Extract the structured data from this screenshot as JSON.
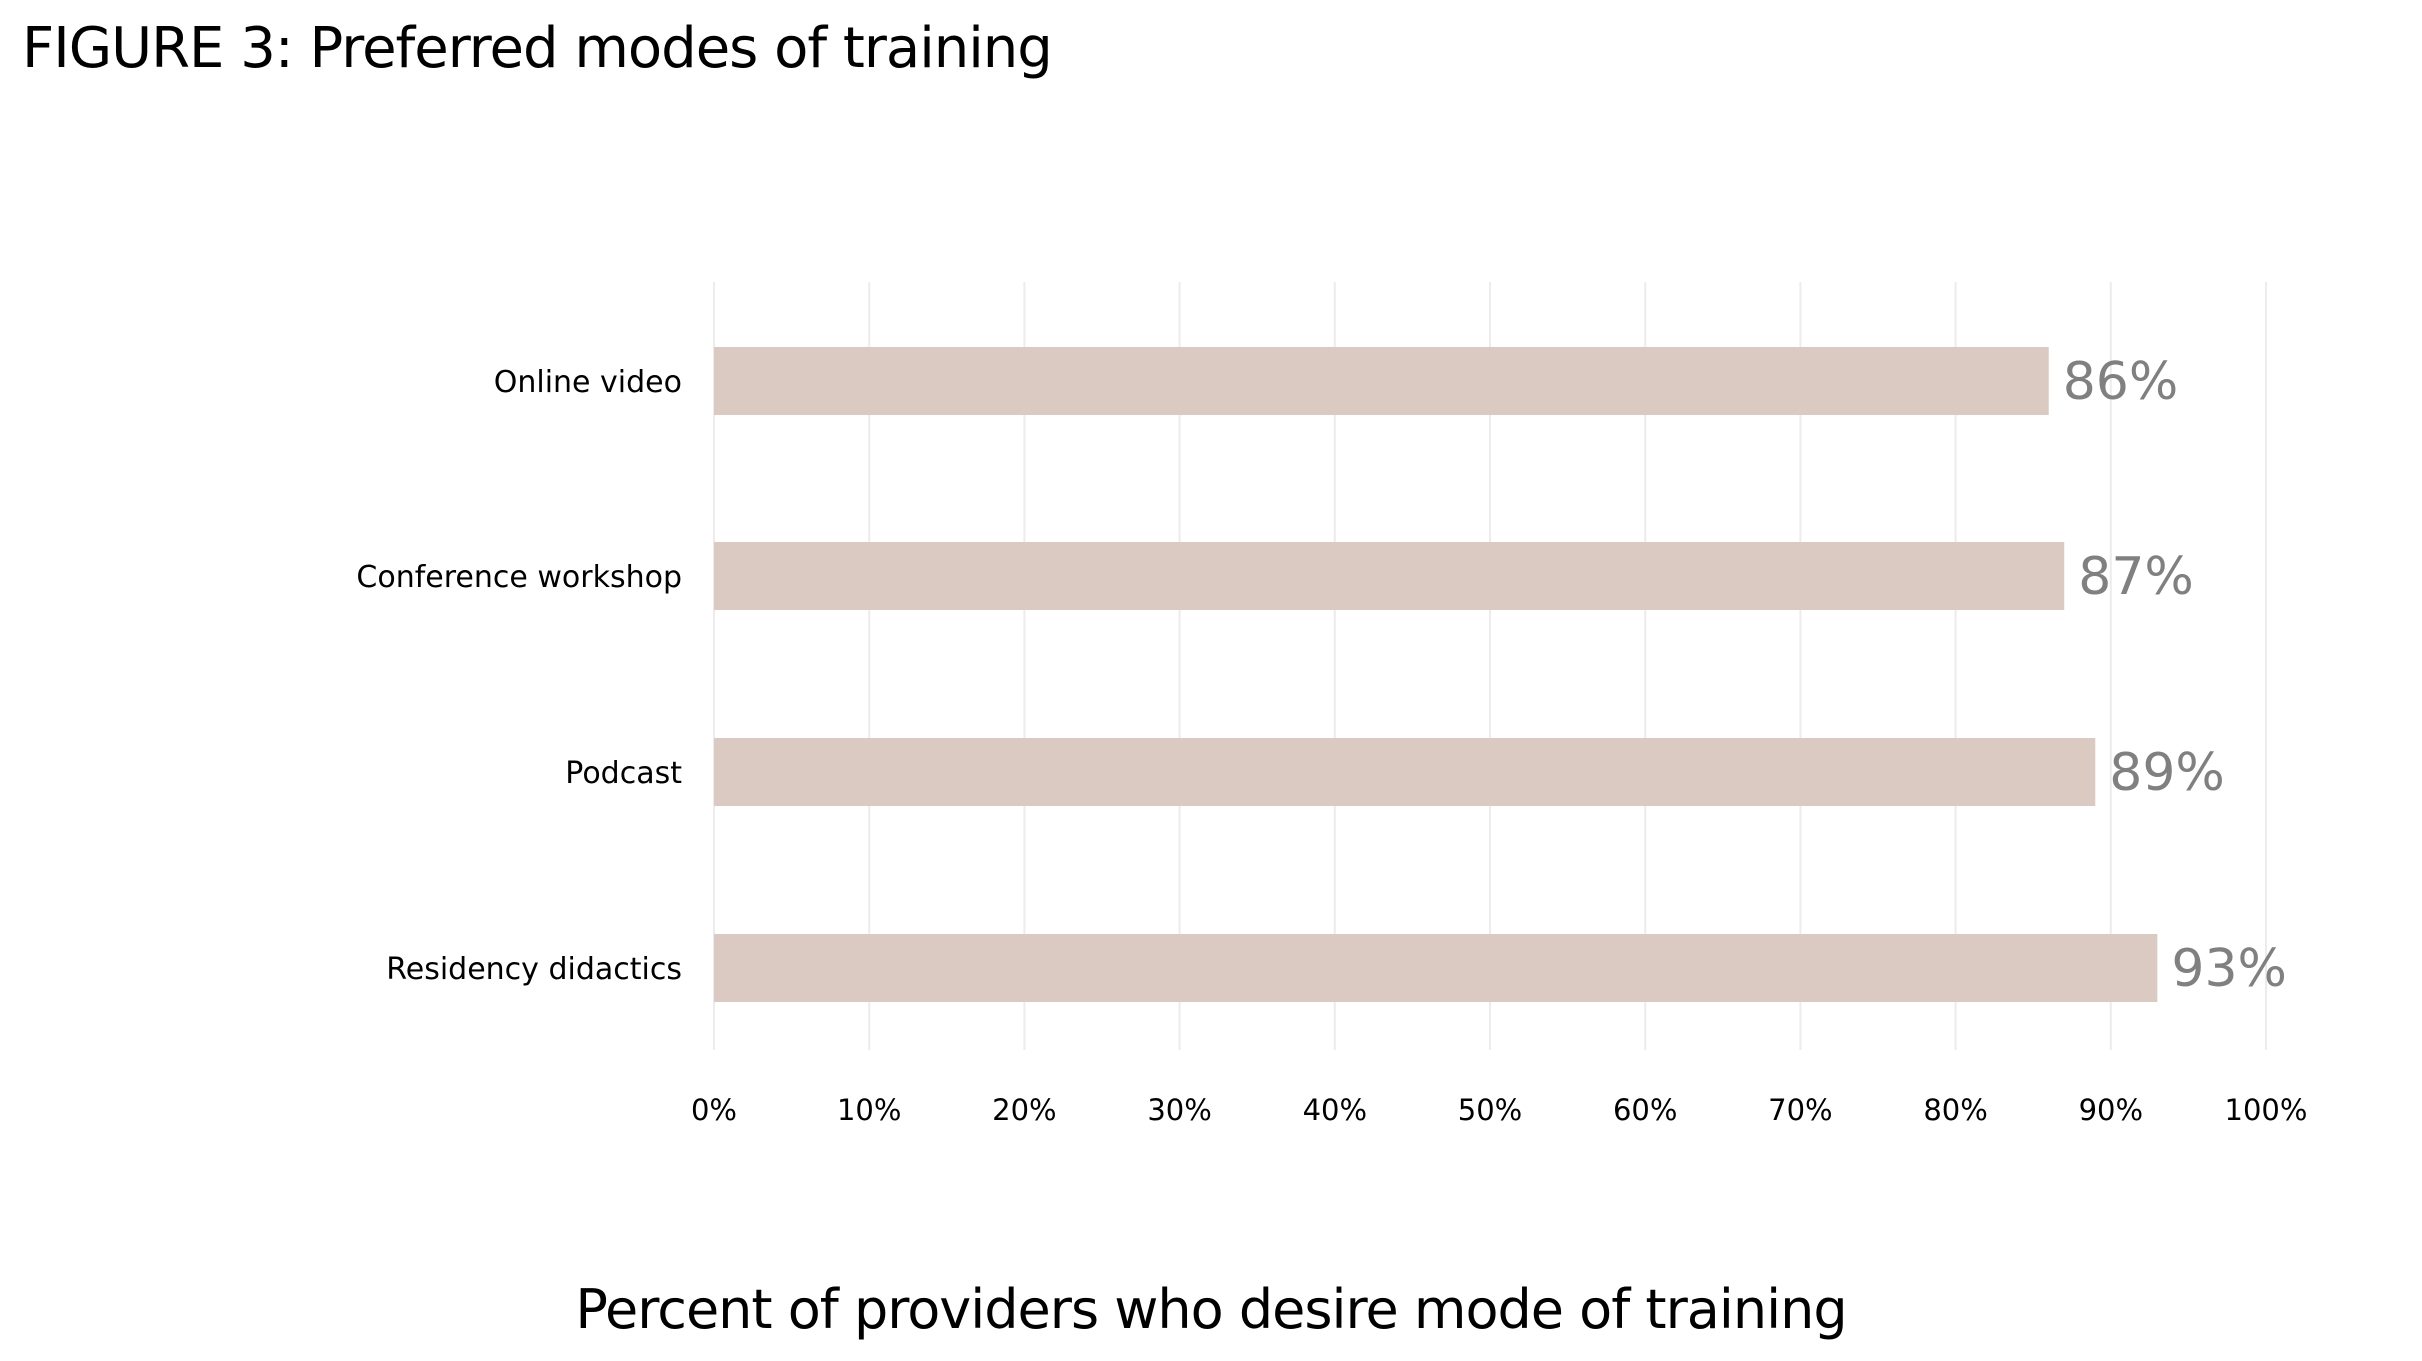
{
  "figure": {
    "title": "FIGURE 3: Preferred modes of training"
  },
  "chart_data": {
    "type": "bar",
    "orientation": "horizontal",
    "title": "FIGURE 3: Preferred modes of training",
    "xlabel": "Percent of providers who desire mode of training",
    "ylabel": "",
    "categories": [
      "Online video",
      "Conference workshop",
      "Podcast",
      "Residency didactics"
    ],
    "values": [
      86,
      87,
      89,
      93
    ],
    "value_labels": [
      "86%",
      "87%",
      "89%",
      "93%"
    ],
    "xlim": [
      0,
      100
    ],
    "xticks": [
      0,
      10,
      20,
      30,
      40,
      50,
      60,
      70,
      80,
      90,
      100
    ],
    "xtick_labels": [
      "0%",
      "10%",
      "20%",
      "30%",
      "40%",
      "50%",
      "60%",
      "70%",
      "80%",
      "90%",
      "100%"
    ],
    "grid": "vertical",
    "legend": "none",
    "colors": {
      "bar": "#dbcac2",
      "grid": "#ececec",
      "value_label": "#808080",
      "text": "#000000"
    }
  }
}
